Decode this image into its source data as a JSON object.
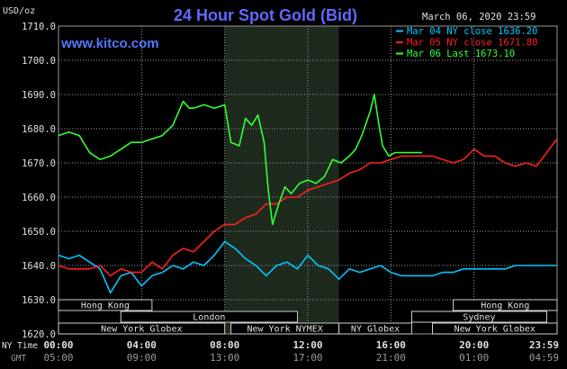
{
  "header": {
    "title": "24 Hour Spot Gold (Bid)",
    "date": "March 06, 2020 23:59",
    "watermark": "www.kitco.com",
    "y_unit": "USD/oz"
  },
  "colors": {
    "background": "#000000",
    "plot_bg": "#000000",
    "nymex_band": "#1e2a1e",
    "grid": "#9a9a9a",
    "title": "#6666ff",
    "watermark": "#5577ff",
    "axis_text": "#e0e0e0",
    "session_fill": "#000000",
    "session_border": "#cfcfcf",
    "session_text": "#e0e0e0"
  },
  "legend": [
    {
      "label": "Mar 04 NY close 1636.20",
      "color": "#00c8ff"
    },
    {
      "label": "Mar 05 NY close 1671.80",
      "color": "#ff2020"
    },
    {
      "label": "Mar 06 Last 1673.10",
      "color": "#33ff33"
    }
  ],
  "time_axis": {
    "ny_label": "NY Time",
    "gmt_label": "GMT",
    "ny_ticks": [
      "00:00",
      "04:00",
      "08:00",
      "12:00",
      "16:00",
      "20:00",
      "23:59"
    ],
    "gmt_ticks": [
      "05:00",
      "09:00",
      "13:00",
      "17:00",
      "21:00",
      "01:00",
      "04:59"
    ]
  },
  "sessions": [
    {
      "label": "Hong Kong",
      "row": 0,
      "start": 0,
      "end": 4.5
    },
    {
      "label": "Hong Kong",
      "row": 0,
      "start": 19,
      "end": 24
    },
    {
      "label": "London",
      "row": 1,
      "start": 3,
      "end": 11.5
    },
    {
      "label": "Sydney",
      "row": 1,
      "start": 17,
      "end": 23.5
    },
    {
      "label": "New York Globex",
      "row": 2,
      "start": 0,
      "end": 8
    },
    {
      "label": "New York NYMEX",
      "row": 2,
      "start": 8.3,
      "end": 13.5
    },
    {
      "label": "NY Globex",
      "row": 2,
      "start": 13.5,
      "end": 17
    },
    {
      "label": "New York Globex",
      "row": 2,
      "start": 18,
      "end": 24
    }
  ],
  "chart_data": {
    "type": "line",
    "title": "24 Hour Spot Gold (Bid)",
    "ylabel": "USD/oz",
    "xlabel": "NY Time",
    "xlim": [
      0,
      24
    ],
    "ylim": [
      1620,
      1710
    ],
    "yticks": [
      1620,
      1630,
      1640,
      1650,
      1660,
      1670,
      1680,
      1690,
      1700,
      1710
    ],
    "ytick_labels": [
      "1620.0",
      "1630.0",
      "1640.0",
      "1650.0",
      "1660.0",
      "1670.0",
      "1680.0",
      "1690.0",
      "1700.0",
      "1710.0"
    ],
    "grid": true,
    "shaded_range": [
      8,
      13.5
    ],
    "legend_position": "top-right",
    "series": [
      {
        "name": "Mar 04 NY close 1636.20",
        "color": "#00c8ff",
        "x": [
          0,
          0.5,
          1,
          1.5,
          2,
          2.5,
          3,
          3.5,
          4,
          4.5,
          5,
          5.5,
          6,
          6.5,
          7,
          7.5,
          8,
          8.5,
          9,
          9.5,
          10,
          10.5,
          11,
          11.5,
          12,
          12.5,
          13,
          13.5,
          14,
          14.5,
          15,
          15.5,
          16,
          16.5,
          17,
          17.5,
          18,
          18.5,
          19,
          19.5,
          20,
          20.5,
          21,
          21.5,
          22,
          22.5,
          23,
          23.5,
          24
        ],
        "y": [
          1643,
          1642,
          1643,
          1641,
          1639,
          1632,
          1637,
          1638,
          1634,
          1637,
          1638,
          1640,
          1639,
          1641,
          1640,
          1643,
          1647,
          1645,
          1642,
          1640,
          1637,
          1640,
          1641,
          1639,
          1643,
          1640,
          1639,
          1636,
          1639,
          1638,
          1639,
          1640,
          1638,
          1637,
          1637,
          1637,
          1637,
          1638,
          1638,
          1639,
          1639,
          1639,
          1639,
          1639,
          1640,
          1640,
          1640,
          1640,
          1640
        ]
      },
      {
        "name": "Mar 05 NY close 1671.80",
        "color": "#ff2020",
        "x": [
          0,
          0.5,
          1,
          1.5,
          2,
          2.5,
          3,
          3.5,
          4,
          4.5,
          5,
          5.5,
          6,
          6.5,
          7,
          7.5,
          8,
          8.5,
          9,
          9.5,
          10,
          10.5,
          11,
          11.5,
          12,
          12.5,
          13,
          13.5,
          14,
          14.5,
          15,
          15.5,
          16,
          16.5,
          17,
          17.5,
          18,
          18.5,
          19,
          19.5,
          20,
          20.5,
          21,
          21.5,
          22,
          22.5,
          23,
          23.5,
          24
        ],
        "y": [
          1640,
          1639,
          1639,
          1639,
          1640,
          1637,
          1639,
          1638,
          1638,
          1641,
          1639,
          1643,
          1645,
          1644,
          1647,
          1650,
          1652,
          1652,
          1654,
          1655,
          1658,
          1658,
          1660,
          1660,
          1662,
          1663,
          1664,
          1665,
          1667,
          1668,
          1670,
          1670,
          1671,
          1672,
          1672,
          1672,
          1672,
          1671,
          1670,
          1671,
          1674,
          1672,
          1672,
          1670,
          1669,
          1670,
          1669,
          1673,
          1677
        ]
      },
      {
        "name": "Mar 06 Last 1673.10",
        "color": "#33ff33",
        "x": [
          0,
          0.5,
          1,
          1.5,
          2,
          2.5,
          3,
          3.5,
          4,
          4.5,
          5,
          5.5,
          6,
          6.3,
          6.5,
          7,
          7.5,
          8,
          8.3,
          8.7,
          9,
          9.3,
          9.6,
          9.9,
          10.1,
          10.3,
          10.6,
          10.9,
          11.2,
          11.6,
          12,
          12.4,
          12.8,
          13.2,
          13.6,
          14,
          14.3,
          14.6,
          15,
          15.2,
          15.4,
          15.6,
          15.9,
          16.2,
          16.6,
          17,
          17.5
        ],
        "y": [
          1678,
          1679,
          1678,
          1673,
          1671,
          1672,
          1674,
          1676,
          1676,
          1677,
          1678,
          1681,
          1688,
          1686,
          1686,
          1687,
          1686,
          1687,
          1676,
          1675,
          1683,
          1681,
          1684,
          1676,
          1662,
          1652,
          1658,
          1663,
          1661,
          1664,
          1665,
          1664,
          1666,
          1671,
          1670,
          1672,
          1674,
          1678,
          1685,
          1690,
          1682,
          1675,
          1672,
          1673,
          1673,
          1673,
          1673
        ]
      }
    ]
  }
}
